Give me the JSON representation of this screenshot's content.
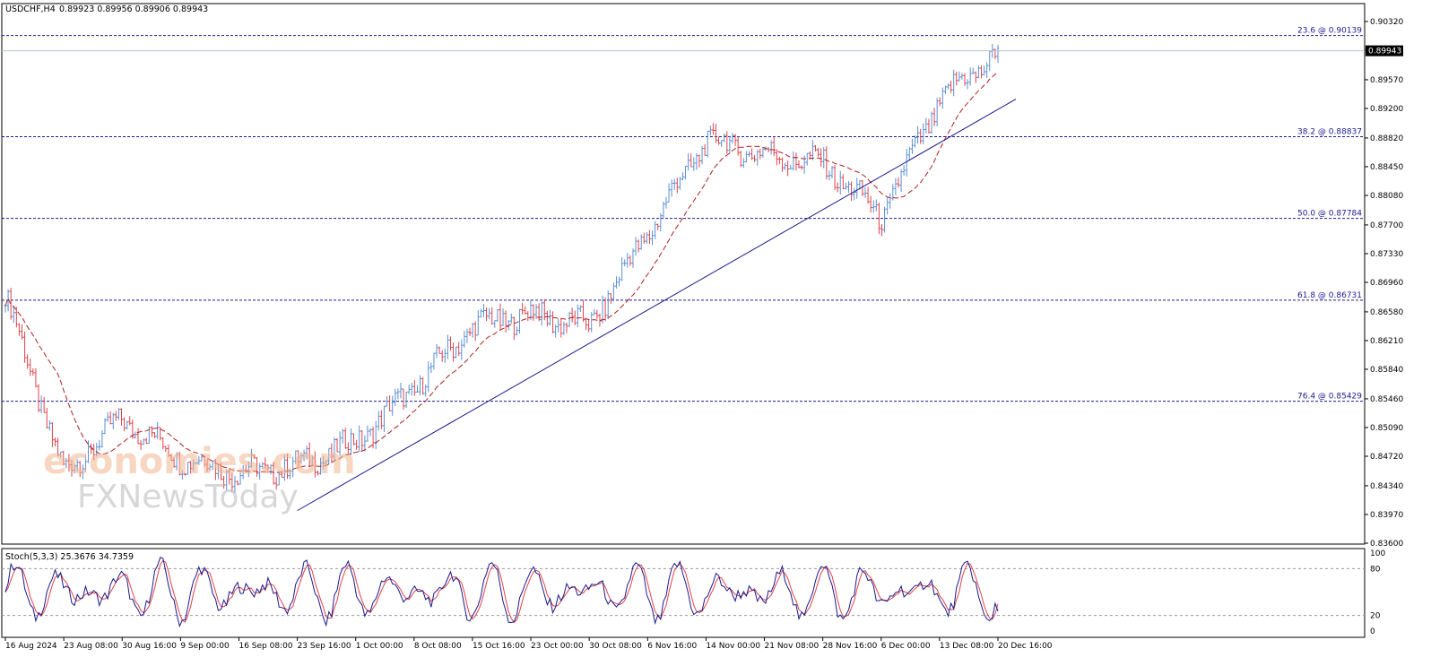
{
  "header": {
    "symbol": "USDCHF,H4",
    "ohlc": "0.89923 0.89956 0.89906 0.89943"
  },
  "watermark": {
    "brand1": "economies.com",
    "brand2": "FXNewsToday"
  },
  "colors": {
    "bull": "#5b8fd4",
    "bear": "#e0434b",
    "ma": "#b02020",
    "trendline": "#1a1a8c",
    "fib": "#1a1a8c",
    "stoch_main": "#1a1a8c",
    "stoch_signal": "#e0434b"
  },
  "chart_data": [
    {
      "type": "line",
      "title": "USDCHF,H4",
      "y_ticks": [
        "0.90320",
        "0.89950",
        "0.89570",
        "0.89200",
        "0.88820",
        "0.88450",
        "0.88080",
        "0.87700",
        "0.87330",
        "0.86960",
        "0.86580",
        "0.86210",
        "0.85840",
        "0.85460",
        "0.85090",
        "0.84720",
        "0.84340",
        "0.83970",
        "0.83600"
      ],
      "ylim": [
        0.836,
        0.9032
      ],
      "x_ticks": [
        "16 Aug 2024",
        "23 Aug 08:00",
        "30 Aug 16:00",
        "9 Sep 00:00",
        "16 Sep 08:00",
        "23 Sep 16:00",
        "1 Oct 00:00",
        "8 Oct 08:00",
        "15 Oct 16:00",
        "23 Oct 00:00",
        "30 Oct 08:00",
        "6 Nov 16:00",
        "14 Nov 00:00",
        "21 Nov 08:00",
        "28 Nov 16:00",
        "6 Dec 00:00",
        "13 Dec 08:00",
        "20 Dec 16:00"
      ],
      "current_price": "0.89943",
      "price_series": [
        {
          "x": "16 Aug 2024",
          "close": 0.868
        },
        {
          "x": "23 Aug 08:00",
          "close": 0.845
        },
        {
          "x": "30 Aug 16:00",
          "close": 0.852
        },
        {
          "x": "9 Sep 00:00",
          "close": 0.847
        },
        {
          "x": "16 Sep 08:00",
          "close": 0.845
        },
        {
          "x": "23 Sep 16:00",
          "close": 0.846
        },
        {
          "x": "1 Oct 00:00",
          "close": 0.849
        },
        {
          "x": "8 Oct 08:00",
          "close": 0.856
        },
        {
          "x": "15 Oct 16:00",
          "close": 0.864
        },
        {
          "x": "23 Oct 00:00",
          "close": 0.8655
        },
        {
          "x": "30 Oct 08:00",
          "close": 0.864
        },
        {
          "x": "6 Nov 16:00",
          "close": 0.876
        },
        {
          "x": "14 Nov 00:00",
          "close": 0.888
        },
        {
          "x": "21 Nov 08:00",
          "close": 0.886
        },
        {
          "x": "28 Nov 16:00",
          "close": 0.885
        },
        {
          "x": "6 Dec 00:00",
          "close": 0.878
        },
        {
          "x": "13 Dec 08:00",
          "close": 0.893
        },
        {
          "x": "20 Dec 16:00",
          "close": 0.8994
        }
      ],
      "fib_levels": [
        {
          "label": "23.6 @ 0.90139",
          "value": 0.90139
        },
        {
          "label": "38.2 @ 0.88837",
          "value": 0.88837
        },
        {
          "label": "50.0 @ 0.87784",
          "value": 0.87784
        },
        {
          "label": "61.8 @ 0.86731",
          "value": 0.86731
        },
        {
          "label": "76.4 @ 0.85429",
          "value": 0.85429
        }
      ],
      "trendline": {
        "from": {
          "x": "23 Sep 16:00",
          "y": 0.8402
        },
        "to": {
          "x": "20 Dec 16:00",
          "y": 0.8932
        }
      }
    },
    {
      "type": "line",
      "title": "Stoch(5,3,3) 25.3676 34.7359",
      "y_ticks": [
        "100",
        "80",
        "20",
        "0"
      ],
      "ylim": [
        0,
        100
      ],
      "levels": [
        80,
        20
      ],
      "main_last": 25.3676,
      "signal_last": 34.7359
    }
  ]
}
